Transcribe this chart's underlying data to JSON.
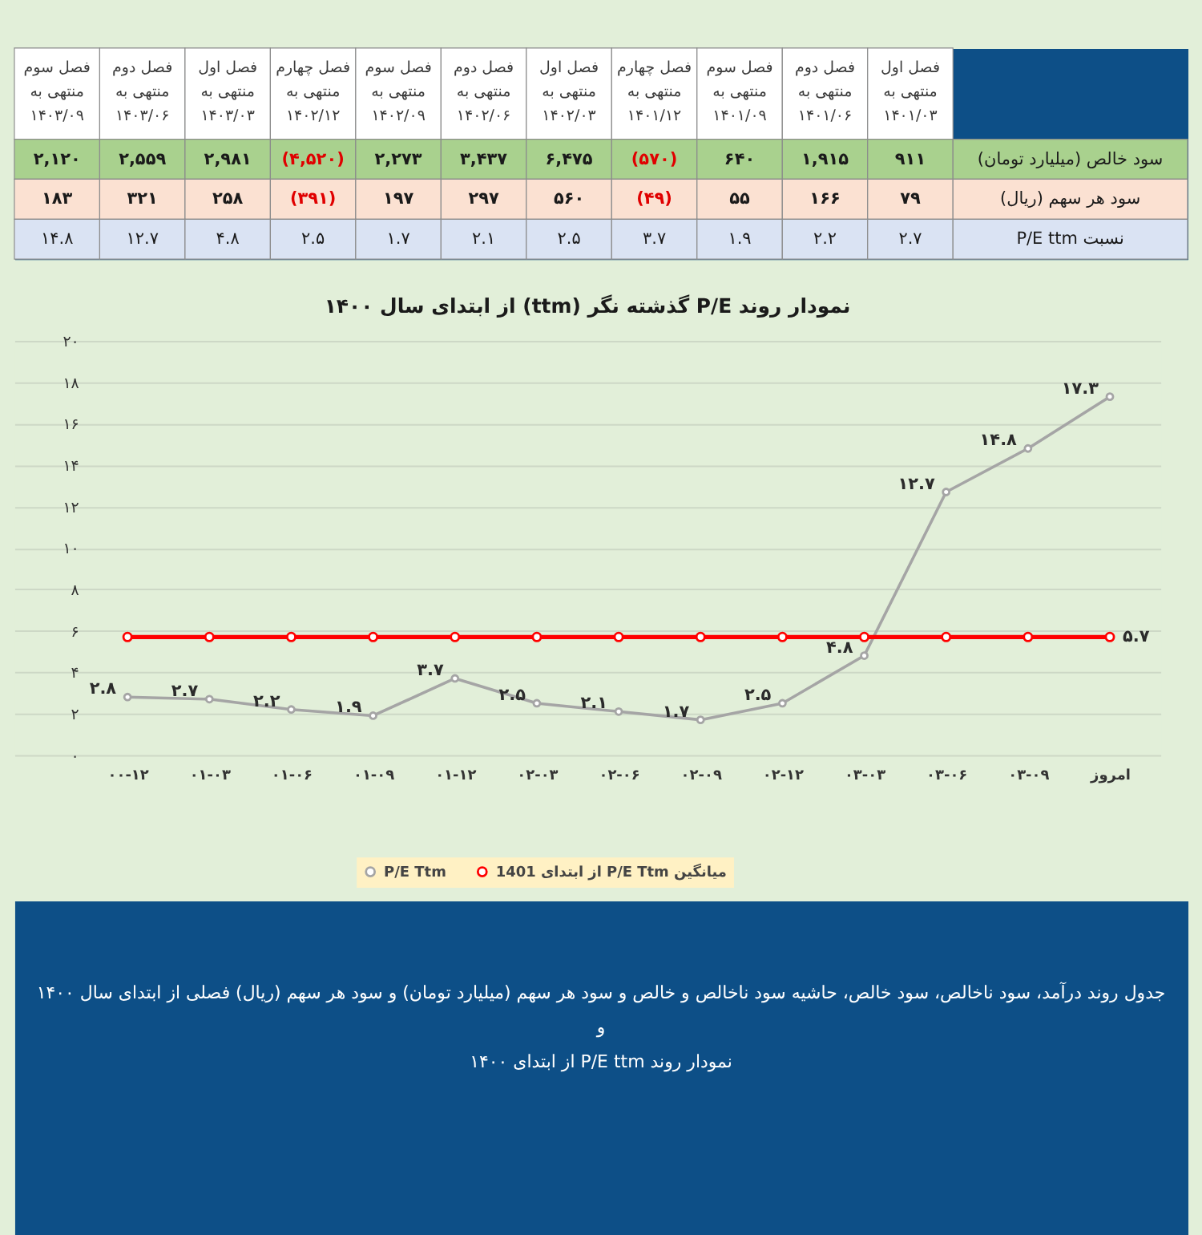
{
  "chart_data": [
    {
      "type": "heatmap",
      "categories": [
        "فصل سوم\nمنتهی به\n۱۴۰۳/۰۹",
        "فصل دوم\nمنتهی به\n۱۴۰۳/۰۶",
        "فصل اول\nمنتهی به\n۱۴۰۳/۰۳",
        "فصل چهارم\nمنتهی به\n۱۴۰۲/۱۲",
        "فصل سوم\nمنتهی به\n۱۴۰۲/۰۹",
        "فصل دوم\nمنتهی به\n۱۴۰۲/۰۶",
        "فصل اول\nمنتهی به\n۱۴۰۲/۰۳",
        "فصل چهارم\nمنتهی به\n۱۴۰۱/۱۲",
        "فصل سوم\nمنتهی به\n۱۴۰۱/۰۹",
        "فصل دوم\nمنتهی به\n۱۴۰۱/۰۶",
        "فصل اول\nمنتهی به\n۱۴۰۱/۰۳"
      ],
      "y_categories": [
        "سود خالص (میلیارد تومان)",
        "سود هر سهم (ریال)",
        "نسبت P/E ttm"
      ],
      "cells": [
        [
          2120,
          2559,
          2981,
          -4520,
          2273,
          3437,
          6475,
          -570,
          640,
          1915,
          911
        ],
        [
          183,
          321,
          258,
          -391,
          197,
          297,
          560,
          -49,
          55,
          166,
          79
        ],
        [
          14.8,
          12.7,
          4.8,
          2.5,
          1.7,
          2.1,
          2.5,
          3.7,
          1.9,
          2.2,
          2.7
        ]
      ],
      "cell_labels": [
        [
          "۲,۱۲۰",
          "۲,۵۵۹",
          "۲,۹۸۱",
          "(۴,۵۲۰)",
          "۲,۲۷۳",
          "۳,۴۳۷",
          "۶,۴۷۵",
          "(۵۷۰)",
          "۶۴۰",
          "۱,۹۱۵",
          "۹۱۱"
        ],
        [
          "۱۸۳",
          "۳۲۱",
          "۲۵۸",
          "(۳۹۱)",
          "۱۹۷",
          "۲۹۷",
          "۵۶۰",
          "(۴۹)",
          "۵۵",
          "۱۶۶",
          "۷۹"
        ],
        [
          "۱۴.۸",
          "۱۲.۷",
          "۴.۸",
          "۲.۵",
          "۱.۷",
          "۲.۱",
          "۲.۵",
          "۳.۷",
          "۱.۹",
          "۲.۲",
          "۲.۷"
        ]
      ],
      "colors": [
        "#a9d18e",
        "#fbe1d2",
        "#dae3f3"
      ]
    },
    {
      "type": "line",
      "title": "نمودار روند P/E گذشته نگر (ttm) از ابتدای سال ۱۴۰۰",
      "categories": [
        "۰۰-۱۲",
        "۰۱-۰۳",
        "۰۱-۰۶",
        "۰۱-۰۹",
        "۰۱-۱۲",
        "۰۲-۰۳",
        "۰۲-۰۶",
        "۰۲-۰۹",
        "۰۲-۱۲",
        "۰۳-۰۳",
        "۰۳-۰۶",
        "۰۳-۰۹",
        "امروز"
      ],
      "series": [
        {
          "name": "P/E Ttm",
          "color": "#a5a5a5",
          "values": [
            2.8,
            2.7,
            2.2,
            1.9,
            3.7,
            2.5,
            2.1,
            1.7,
            2.5,
            4.8,
            12.7,
            14.8,
            17.3
          ],
          "value_labels": [
            "۲.۸",
            "۲.۷",
            "۲.۲",
            "۱.۹",
            "۳.۷",
            "۲.۵",
            "۲.۱",
            "۱.۷",
            "۲.۵",
            "۴.۸",
            "۱۲.۷",
            "۱۴.۸",
            "۱۷.۳"
          ]
        },
        {
          "name": "میانگین P/E Ttm از ابتدای 1401",
          "color": "#ff0000",
          "values": [
            5.7,
            5.7,
            5.7,
            5.7,
            5.7,
            5.7,
            5.7,
            5.7,
            5.7,
            5.7,
            5.7,
            5.7,
            5.7
          ],
          "value_labels": [
            null,
            null,
            null,
            null,
            null,
            null,
            null,
            null,
            null,
            null,
            null,
            null,
            "۵.۷"
          ]
        }
      ],
      "ylim": [
        0,
        20
      ],
      "yticks": [
        {
          "value": 0,
          "label": "۰"
        },
        {
          "value": 2,
          "label": "۲"
        },
        {
          "value": 4,
          "label": "۴"
        },
        {
          "value": 6,
          "label": "۶"
        },
        {
          "value": 8,
          "label": "۸"
        },
        {
          "value": 10,
          "label": "۱۰"
        },
        {
          "value": 12,
          "label": "۱۲"
        },
        {
          "value": 14,
          "label": "۱۴"
        },
        {
          "value": 16,
          "label": "۱۶"
        },
        {
          "value": 18,
          "label": "۱۸"
        },
        {
          "value": 20,
          "label": "۲۰"
        }
      ],
      "grid": "y",
      "legend": "bottom",
      "marker": "circle",
      "annotations": [
        "جدول روند درآمد، سود ناخالص، سود خالص، حاشیه سود ناخالص و خالص و سود هر سهم (میلیارد تومان) و سود هر سهم (ریال) فصلی از ابتدای سال ۱۴۰۰",
        "و",
        "نمودار روند P/E ttm از ابتدای ۱۴۰۰"
      ]
    }
  ]
}
